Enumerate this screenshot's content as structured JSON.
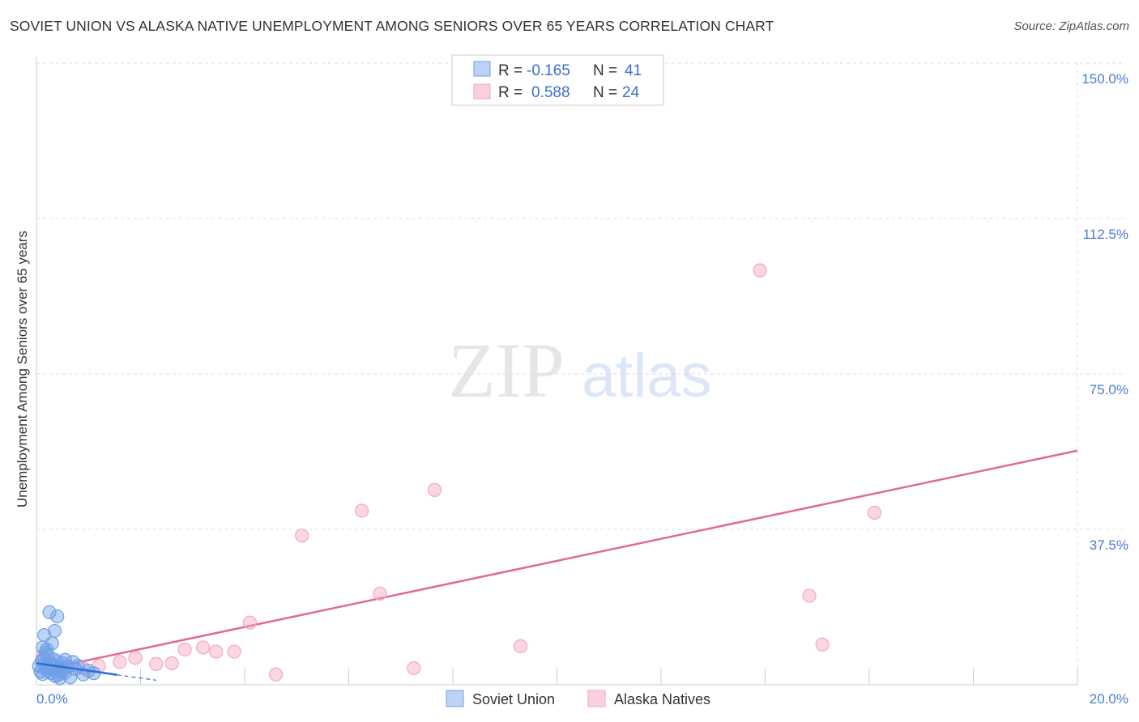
{
  "header": {
    "title": "SOVIET UNION VS ALASKA NATIVE UNEMPLOYMENT AMONG SENIORS OVER 65 YEARS CORRELATION CHART",
    "source": "Source: ZipAtlas.com"
  },
  "watermark": {
    "zip": "ZIP",
    "atlas": "atlas"
  },
  "legend": {
    "rows": [
      {
        "r_label": "R =",
        "r_value": "-0.165",
        "n_label": "N =",
        "n_value": "41"
      },
      {
        "r_label": "R =",
        "r_value": "0.588",
        "n_label": "N =",
        "n_value": "24"
      }
    ]
  },
  "chart_data": {
    "type": "scatter",
    "title": "SOVIET UNION VS ALASKA NATIVE UNEMPLOYMENT AMONG SENIORS OVER 65 YEARS CORRELATION CHART",
    "xlabel": "",
    "ylabel": "Unemployment Among Seniors over 65 years",
    "xlim": [
      0,
      20
    ],
    "ylim": [
      0,
      150
    ],
    "y_ticks": [
      37.5,
      75.0,
      112.5,
      150.0
    ],
    "y_tick_labels": [
      "37.5%",
      "75.0%",
      "112.5%",
      "150.0%"
    ],
    "x_tick_labels": [
      "0.0%",
      "20.0%"
    ],
    "grid": true,
    "legend_position": "bottom",
    "colors": {
      "soviet": "#6fa0e6",
      "soviet_line": "#2f6bd6",
      "alaska": "#f4a6bf",
      "alaska_line": "#e06a92"
    },
    "series": [
      {
        "name": "Soviet Union",
        "r": -0.165,
        "n": 41,
        "points": [
          [
            0.05,
            4.5
          ],
          [
            0.08,
            3.2
          ],
          [
            0.1,
            5.8
          ],
          [
            0.12,
            2.6
          ],
          [
            0.15,
            6.3
          ],
          [
            0.18,
            4.0
          ],
          [
            0.2,
            3.5
          ],
          [
            0.22,
            7.1
          ],
          [
            0.25,
            5.0
          ],
          [
            0.28,
            2.8
          ],
          [
            0.3,
            4.8
          ],
          [
            0.32,
            3.9
          ],
          [
            0.35,
            6.0
          ],
          [
            0.38,
            3.1
          ],
          [
            0.4,
            5.5
          ],
          [
            0.42,
            2.4
          ],
          [
            0.45,
            4.2
          ],
          [
            0.48,
            3.6
          ],
          [
            0.5,
            5.2
          ],
          [
            0.55,
            2.9
          ],
          [
            0.6,
            4.4
          ],
          [
            0.15,
            12.0
          ],
          [
            0.2,
            8.5
          ],
          [
            0.25,
            17.5
          ],
          [
            0.3,
            10.0
          ],
          [
            0.35,
            13.0
          ],
          [
            0.4,
            16.5
          ],
          [
            0.12,
            9.0
          ],
          [
            0.7,
            5.5
          ],
          [
            0.75,
            3.8
          ],
          [
            0.8,
            4.6
          ],
          [
            0.9,
            2.5
          ],
          [
            1.0,
            3.4
          ],
          [
            0.65,
            1.8
          ],
          [
            0.45,
            1.6
          ],
          [
            0.55,
            6.0
          ],
          [
            0.18,
            7.8
          ],
          [
            0.28,
            4.9
          ],
          [
            0.36,
            2.1
          ],
          [
            0.5,
            3.3
          ],
          [
            1.1,
            2.8
          ]
        ],
        "trend": [
          [
            0.0,
            5.2
          ],
          [
            1.55,
            2.4
          ]
        ],
        "trend_dashed": [
          [
            1.55,
            2.4
          ],
          [
            2.3,
            1.1
          ]
        ]
      },
      {
        "name": "Alaska Natives",
        "r": 0.588,
        "n": 24,
        "points": [
          [
            0.12,
            7.0
          ],
          [
            0.2,
            4.0
          ],
          [
            0.9,
            4.0
          ],
          [
            1.2,
            4.5
          ],
          [
            1.6,
            5.5
          ],
          [
            1.9,
            6.5
          ],
          [
            2.3,
            5.0
          ],
          [
            2.6,
            5.2
          ],
          [
            2.85,
            8.5
          ],
          [
            3.2,
            9.0
          ],
          [
            3.45,
            8.0
          ],
          [
            3.8,
            8.0
          ],
          [
            4.1,
            15.0
          ],
          [
            4.6,
            2.5
          ],
          [
            5.1,
            36.0
          ],
          [
            6.25,
            42.0
          ],
          [
            6.6,
            22.0
          ],
          [
            7.25,
            4.0
          ],
          [
            7.65,
            47.0
          ],
          [
            9.3,
            9.3
          ],
          [
            13.9,
            100.0
          ],
          [
            14.85,
            21.5
          ],
          [
            15.1,
            9.7
          ],
          [
            16.1,
            41.5
          ]
        ],
        "trend": [
          [
            0.0,
            3.3
          ],
          [
            20.0,
            56.5
          ]
        ]
      }
    ]
  }
}
